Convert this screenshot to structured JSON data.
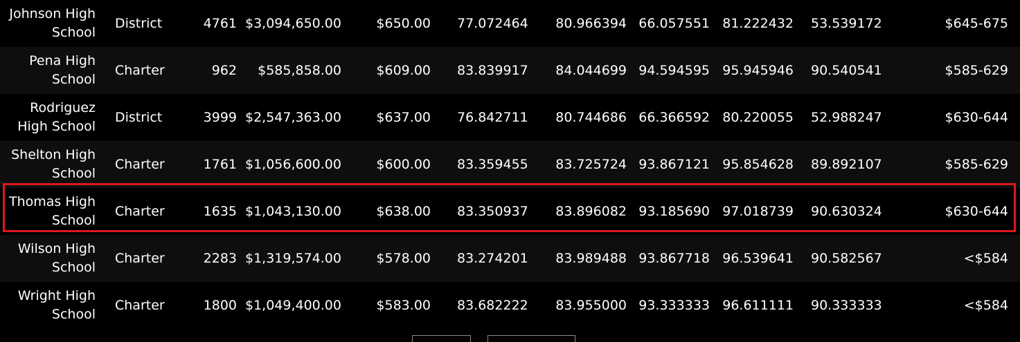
{
  "table": {
    "rows": [
      {
        "name": "Johnson High School",
        "type": "District",
        "students": "4761",
        "budget": "$3,094,650.00",
        "per_capita": "$650.00",
        "avg_math": "77.072464",
        "avg_reading": "80.966394",
        "pct_math": "66.057551",
        "pct_reading": "81.222432",
        "pct_overall": "53.539172",
        "spending_range": "$645-675"
      },
      {
        "name": "Pena High School",
        "type": "Charter",
        "students": "962",
        "budget": "$585,858.00",
        "per_capita": "$609.00",
        "avg_math": "83.839917",
        "avg_reading": "84.044699",
        "pct_math": "94.594595",
        "pct_reading": "95.945946",
        "pct_overall": "90.540541",
        "spending_range": "$585-629"
      },
      {
        "name": "Rodriguez High School",
        "type": "District",
        "students": "3999",
        "budget": "$2,547,363.00",
        "per_capita": "$637.00",
        "avg_math": "76.842711",
        "avg_reading": "80.744686",
        "pct_math": "66.366592",
        "pct_reading": "80.220055",
        "pct_overall": "52.988247",
        "spending_range": "$630-644"
      },
      {
        "name": "Shelton High School",
        "type": "Charter",
        "students": "1761",
        "budget": "$1,056,600.00",
        "per_capita": "$600.00",
        "avg_math": "83.359455",
        "avg_reading": "83.725724",
        "pct_math": "93.867121",
        "pct_reading": "95.854628",
        "pct_overall": "89.892107",
        "spending_range": "$585-629"
      },
      {
        "name": "Thomas High School",
        "type": "Charter",
        "students": "1635",
        "budget": "$1,043,130.00",
        "per_capita": "$638.00",
        "avg_math": "83.350937",
        "avg_reading": "83.896082",
        "pct_math": "93.185690",
        "pct_reading": "97.018739",
        "pct_overall": "90.630324",
        "spending_range": "$630-644"
      },
      {
        "name": "Wilson High School",
        "type": "Charter",
        "students": "2283",
        "budget": "$1,319,574.00",
        "per_capita": "$578.00",
        "avg_math": "83.274201",
        "avg_reading": "83.989488",
        "pct_math": "93.867718",
        "pct_reading": "96.539641",
        "pct_overall": "90.582567",
        "spending_range": "<$584"
      },
      {
        "name": "Wright High School",
        "type": "Charter",
        "students": "1800",
        "budget": "$1,049,400.00",
        "per_capita": "$583.00",
        "avg_math": "83.682222",
        "avg_reading": "83.955000",
        "pct_math": "93.333333",
        "pct_reading": "96.611111",
        "pct_overall": "90.333333",
        "spending_range": "<$584"
      }
    ],
    "highlighted_row_index": 4
  },
  "colors": {
    "background": "#000000",
    "row_alt": "#0e0e0e",
    "text": "#ffffff",
    "highlight": "#e0161e",
    "pager_border": "#8a8a8a"
  }
}
